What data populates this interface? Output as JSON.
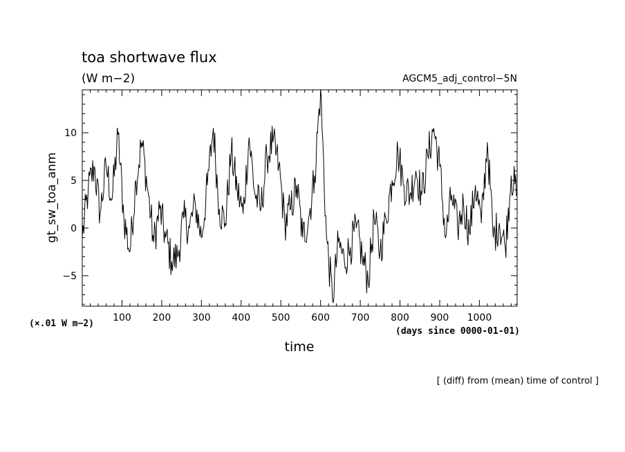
{
  "chart_data": {
    "type": "line",
    "title": "toa shortwave flux",
    "units": "(W m−2)",
    "dataset": "AGCM5_adj_control−5N",
    "ylabel": "gt_sw_toa_anm",
    "xlabel": "time",
    "x_scale_label": "(×.01 W m−2)",
    "x_axis_note": "(days since 0000-01-01)",
    "footnote": "[ (diff) from (mean) time of control ]",
    "xlim": [
      0,
      1095
    ],
    "ylim": [
      -8.2,
      14.5
    ],
    "xticks": [
      100,
      200,
      300,
      400,
      500,
      600,
      700,
      800,
      900,
      1000
    ],
    "yticks": [
      -5,
      0,
      5,
      10
    ],
    "series": [
      {
        "color": "#000000",
        "x": [
          0,
          15,
          30,
          45,
          60,
          75,
          90,
          105,
          120,
          135,
          150,
          165,
          180,
          195,
          210,
          225,
          240,
          255,
          270,
          285,
          300,
          315,
          330,
          345,
          360,
          375,
          390,
          405,
          420,
          435,
          450,
          465,
          480,
          495,
          510,
          525,
          540,
          555,
          570,
          585,
          600,
          615,
          630,
          645,
          660,
          675,
          690,
          705,
          720,
          735,
          750,
          765,
          780,
          795,
          810,
          825,
          840,
          855,
          870,
          885,
          900,
          915,
          930,
          945,
          960,
          975,
          990,
          1005,
          1020,
          1035,
          1050,
          1065,
          1080,
          1095
        ],
        "values": [
          -1.0,
          4.0,
          6.5,
          1.5,
          6.5,
          3.0,
          9.8,
          1.0,
          -2.5,
          5.0,
          9.0,
          4.0,
          -1.5,
          2.0,
          -1.0,
          -3.5,
          -3.0,
          1.0,
          0.0,
          2.5,
          -1.0,
          4.5,
          10.5,
          2.0,
          0.5,
          8.0,
          4.0,
          1.5,
          9.5,
          3.5,
          2.0,
          7.5,
          9.0,
          6.5,
          0.5,
          2.0,
          4.5,
          -1.0,
          1.0,
          5.5,
          14.5,
          -1.0,
          -7.5,
          -1.5,
          -3.5,
          -2.0,
          0.0,
          -3.0,
          -5.5,
          1.0,
          -2.5,
          1.0,
          5.0,
          8.0,
          4.5,
          3.5,
          6.0,
          3.5,
          7.5,
          10.5,
          6.5,
          -1.0,
          3.5,
          0.0,
          2.5,
          -0.5,
          4.5,
          0.5,
          9.0,
          -1.0,
          0.5,
          -2.0,
          5.5,
          3.5
        ]
      }
    ]
  }
}
